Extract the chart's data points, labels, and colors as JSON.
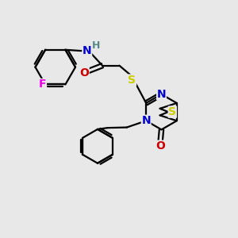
{
  "bg_color": "#e8e8e8",
  "atom_colors": {
    "C": "#000000",
    "N": "#0000cc",
    "O": "#cc0000",
    "S": "#cccc00",
    "F": "#ee00ee",
    "H": "#558888"
  },
  "bond_color": "#000000",
  "bond_width": 1.6,
  "font_size": 10,
  "xlim": [
    0,
    10
  ],
  "ylim": [
    0,
    10
  ]
}
